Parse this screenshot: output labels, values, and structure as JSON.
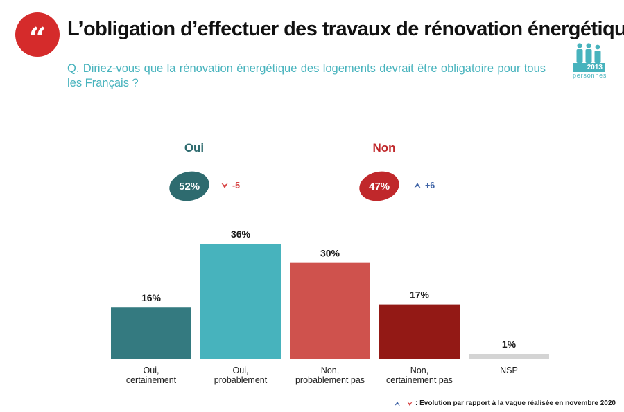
{
  "header": {
    "title": "L’obligation d’effectuer des travaux de rénovation énergétique",
    "question": "Q. Diriez-vous que la rénovation énergétique des logements devrait être obligatoire pour tous les Français ?",
    "sample_size": "2013",
    "sample_unit": "personnes",
    "quote_glyph": "“",
    "colors": {
      "accent": "#d52b2b",
      "teal": "#47b3bd"
    }
  },
  "summary": {
    "oui": {
      "label": "Oui",
      "value": "52%",
      "evolution": "-5",
      "direction": "down",
      "color": "#2e6b6f"
    },
    "non": {
      "label": "Non",
      "value": "47%",
      "evolution": "+6",
      "direction": "up",
      "color": "#c0282b"
    }
  },
  "footer": {
    "note": ": Evolution par rapport à la vague réalisée en novembre 2020"
  },
  "chart_data": {
    "type": "bar",
    "title": "",
    "xlabel": "",
    "ylabel": "",
    "ylim": [
      0,
      40
    ],
    "grid": false,
    "categories": [
      [
        "Oui,",
        "certainement"
      ],
      [
        "Oui,",
        "probablement"
      ],
      [
        "Non,",
        "probablement pas"
      ],
      [
        "Non,",
        "certainement pas"
      ],
      [
        "NSP"
      ]
    ],
    "values": [
      16,
      36,
      30,
      17,
      1
    ],
    "value_labels": [
      "16%",
      "36%",
      "30%",
      "17%",
      "1%"
    ],
    "colors": [
      "#347a80",
      "#47b3bd",
      "#cf524d",
      "#931915",
      "#d4d4d4"
    ]
  }
}
